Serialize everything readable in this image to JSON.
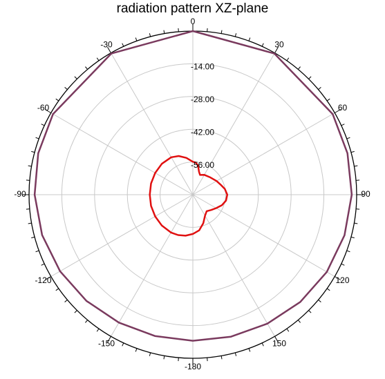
{
  "chart_data": {
    "type": "polar",
    "title": "radiation pattern XZ-plane",
    "angle_ticks": [
      {
        "deg": 0,
        "label": "0"
      },
      {
        "deg": 30,
        "label": "30"
      },
      {
        "deg": 60,
        "label": "60"
      },
      {
        "deg": 90,
        "label": "90"
      },
      {
        "deg": 120,
        "label": "120"
      },
      {
        "deg": 150,
        "label": "150"
      },
      {
        "deg": 180,
        "label": "-180"
      },
      {
        "deg": -150,
        "label": "-150"
      },
      {
        "deg": -120,
        "label": "-120"
      },
      {
        "deg": -90,
        "label": "-90"
      },
      {
        "deg": -60,
        "label": "-60"
      },
      {
        "deg": -30,
        "label": "-30"
      }
    ],
    "radial_range": [
      -70,
      0
    ],
    "radial_ticks": [
      {
        "value": -14,
        "label": "-14.00"
      },
      {
        "value": -28,
        "label": "-28.00"
      },
      {
        "value": -42,
        "label": "-42.00"
      },
      {
        "value": -56,
        "label": "-56.00"
      }
    ],
    "grid": true,
    "series": [
      {
        "color": "#7a3a5e",
        "points": [
          [
            0,
            0.0
          ],
          [
            30,
            -0.3
          ],
          [
            60,
            -1.0
          ],
          [
            75,
            -1.6
          ],
          [
            90,
            -2.1
          ],
          [
            105,
            -2.9
          ],
          [
            120,
            -3.9
          ],
          [
            135,
            -5.1
          ],
          [
            150,
            -6.3
          ],
          [
            165,
            -7.1
          ],
          [
            180,
            -7.5
          ],
          [
            -165,
            -7.4
          ],
          [
            -150,
            -6.8
          ],
          [
            -135,
            -5.7
          ],
          [
            -120,
            -4.5
          ],
          [
            -105,
            -3.3
          ],
          [
            -90,
            -2.4
          ],
          [
            -75,
            -1.6
          ],
          [
            -60,
            -1.0
          ],
          [
            -30,
            -0.3
          ],
          [
            0,
            0.0
          ]
        ]
      },
      {
        "color": "#e01010",
        "points": [
          [
            0,
            -55.9
          ],
          [
            5,
            -56.2
          ],
          [
            10,
            -57.3
          ],
          [
            15,
            -59.8
          ],
          [
            20,
            -61.0
          ],
          [
            30,
            -60.2
          ],
          [
            45,
            -59.5
          ],
          [
            60,
            -58.3
          ],
          [
            70,
            -57.4
          ],
          [
            80,
            -56.1
          ],
          [
            90,
            -55.3
          ],
          [
            100,
            -55.6
          ],
          [
            110,
            -56.8
          ],
          [
            120,
            -58.5
          ],
          [
            130,
            -59.8
          ],
          [
            140,
            -60.8
          ],
          [
            150,
            -59.6
          ],
          [
            160,
            -57.0
          ],
          [
            170,
            -54.5
          ],
          [
            180,
            -53.2
          ],
          [
            -170,
            -52.2
          ],
          [
            -160,
            -51.6
          ],
          [
            -150,
            -51.3
          ],
          [
            -135,
            -51.3
          ],
          [
            -120,
            -51.4
          ],
          [
            -105,
            -51.5
          ],
          [
            -90,
            -51.6
          ],
          [
            -75,
            -51.5
          ],
          [
            -60,
            -51.4
          ],
          [
            -45,
            -51.3
          ],
          [
            -30,
            -51.5
          ],
          [
            -20,
            -52.4
          ],
          [
            -10,
            -54.0
          ],
          [
            0,
            -55.9
          ]
        ]
      }
    ]
  }
}
